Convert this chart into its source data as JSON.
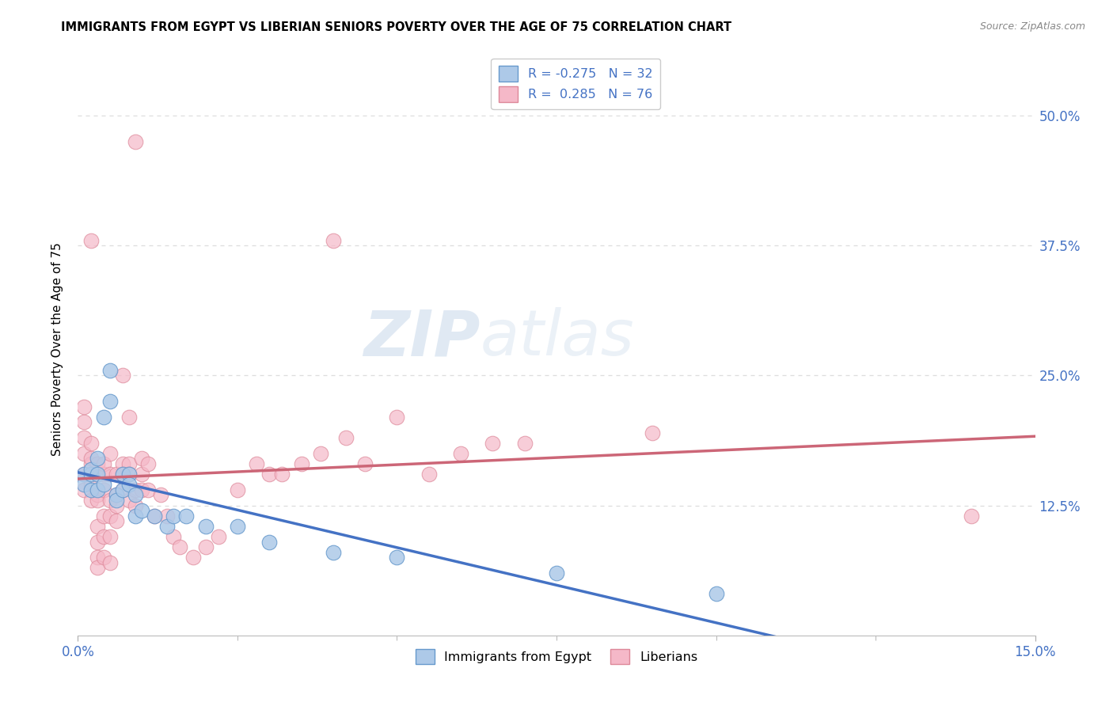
{
  "title": "IMMIGRANTS FROM EGYPT VS LIBERIAN SENIORS POVERTY OVER THE AGE OF 75 CORRELATION CHART",
  "source": "Source: ZipAtlas.com",
  "ylabel": "Seniors Poverty Over the Age of 75",
  "xlim": [
    0.0,
    0.15
  ],
  "ylim": [
    0.0,
    0.55
  ],
  "background_color": "#ffffff",
  "watermark_zip": "ZIP",
  "watermark_atlas": "atlas",
  "legend": {
    "egypt_r": "-0.275",
    "egypt_n": "32",
    "liberia_r": "0.285",
    "liberia_n": "76"
  },
  "egypt_color": "#adc9e8",
  "egypt_edge_color": "#6699cc",
  "egypt_line_color": "#4472c4",
  "liberia_color": "#f5b8c8",
  "liberia_edge_color": "#dd8899",
  "liberia_line_color": "#cc6677",
  "grid_color": "#dddddd",
  "tick_color": "#4472c4",
  "egypt_points": [
    [
      0.001,
      0.155
    ],
    [
      0.001,
      0.145
    ],
    [
      0.002,
      0.155
    ],
    [
      0.002,
      0.14
    ],
    [
      0.002,
      0.16
    ],
    [
      0.003,
      0.17
    ],
    [
      0.003,
      0.155
    ],
    [
      0.003,
      0.14
    ],
    [
      0.004,
      0.145
    ],
    [
      0.004,
      0.21
    ],
    [
      0.005,
      0.255
    ],
    [
      0.005,
      0.225
    ],
    [
      0.006,
      0.135
    ],
    [
      0.006,
      0.13
    ],
    [
      0.007,
      0.155
    ],
    [
      0.007,
      0.14
    ],
    [
      0.008,
      0.155
    ],
    [
      0.008,
      0.145
    ],
    [
      0.009,
      0.135
    ],
    [
      0.009,
      0.115
    ],
    [
      0.01,
      0.12
    ],
    [
      0.012,
      0.115
    ],
    [
      0.014,
      0.105
    ],
    [
      0.015,
      0.115
    ],
    [
      0.017,
      0.115
    ],
    [
      0.02,
      0.105
    ],
    [
      0.025,
      0.105
    ],
    [
      0.03,
      0.09
    ],
    [
      0.04,
      0.08
    ],
    [
      0.05,
      0.075
    ],
    [
      0.075,
      0.06
    ],
    [
      0.1,
      0.04
    ]
  ],
  "liberia_points": [
    [
      0.001,
      0.14
    ],
    [
      0.001,
      0.155
    ],
    [
      0.001,
      0.175
    ],
    [
      0.001,
      0.19
    ],
    [
      0.001,
      0.205
    ],
    [
      0.001,
      0.22
    ],
    [
      0.002,
      0.13
    ],
    [
      0.002,
      0.145
    ],
    [
      0.002,
      0.165
    ],
    [
      0.002,
      0.185
    ],
    [
      0.002,
      0.17
    ],
    [
      0.002,
      0.38
    ],
    [
      0.003,
      0.135
    ],
    [
      0.003,
      0.155
    ],
    [
      0.003,
      0.165
    ],
    [
      0.003,
      0.13
    ],
    [
      0.003,
      0.105
    ],
    [
      0.003,
      0.09
    ],
    [
      0.003,
      0.075
    ],
    [
      0.003,
      0.065
    ],
    [
      0.004,
      0.155
    ],
    [
      0.004,
      0.165
    ],
    [
      0.004,
      0.14
    ],
    [
      0.004,
      0.115
    ],
    [
      0.004,
      0.095
    ],
    [
      0.004,
      0.075
    ],
    [
      0.005,
      0.175
    ],
    [
      0.005,
      0.155
    ],
    [
      0.005,
      0.13
    ],
    [
      0.005,
      0.115
    ],
    [
      0.005,
      0.095
    ],
    [
      0.005,
      0.07
    ],
    [
      0.006,
      0.155
    ],
    [
      0.006,
      0.135
    ],
    [
      0.006,
      0.125
    ],
    [
      0.006,
      0.11
    ],
    [
      0.007,
      0.165
    ],
    [
      0.007,
      0.155
    ],
    [
      0.007,
      0.14
    ],
    [
      0.007,
      0.25
    ],
    [
      0.008,
      0.21
    ],
    [
      0.008,
      0.165
    ],
    [
      0.008,
      0.155
    ],
    [
      0.008,
      0.13
    ],
    [
      0.009,
      0.475
    ],
    [
      0.009,
      0.14
    ],
    [
      0.009,
      0.125
    ],
    [
      0.01,
      0.17
    ],
    [
      0.01,
      0.155
    ],
    [
      0.01,
      0.14
    ],
    [
      0.011,
      0.165
    ],
    [
      0.011,
      0.14
    ],
    [
      0.012,
      0.115
    ],
    [
      0.013,
      0.135
    ],
    [
      0.014,
      0.115
    ],
    [
      0.015,
      0.095
    ],
    [
      0.016,
      0.085
    ],
    [
      0.018,
      0.075
    ],
    [
      0.02,
      0.085
    ],
    [
      0.022,
      0.095
    ],
    [
      0.025,
      0.14
    ],
    [
      0.028,
      0.165
    ],
    [
      0.03,
      0.155
    ],
    [
      0.032,
      0.155
    ],
    [
      0.035,
      0.165
    ],
    [
      0.038,
      0.175
    ],
    [
      0.04,
      0.38
    ],
    [
      0.042,
      0.19
    ],
    [
      0.045,
      0.165
    ],
    [
      0.05,
      0.21
    ],
    [
      0.055,
      0.155
    ],
    [
      0.06,
      0.175
    ],
    [
      0.065,
      0.185
    ],
    [
      0.07,
      0.185
    ],
    [
      0.09,
      0.195
    ],
    [
      0.14,
      0.115
    ]
  ]
}
